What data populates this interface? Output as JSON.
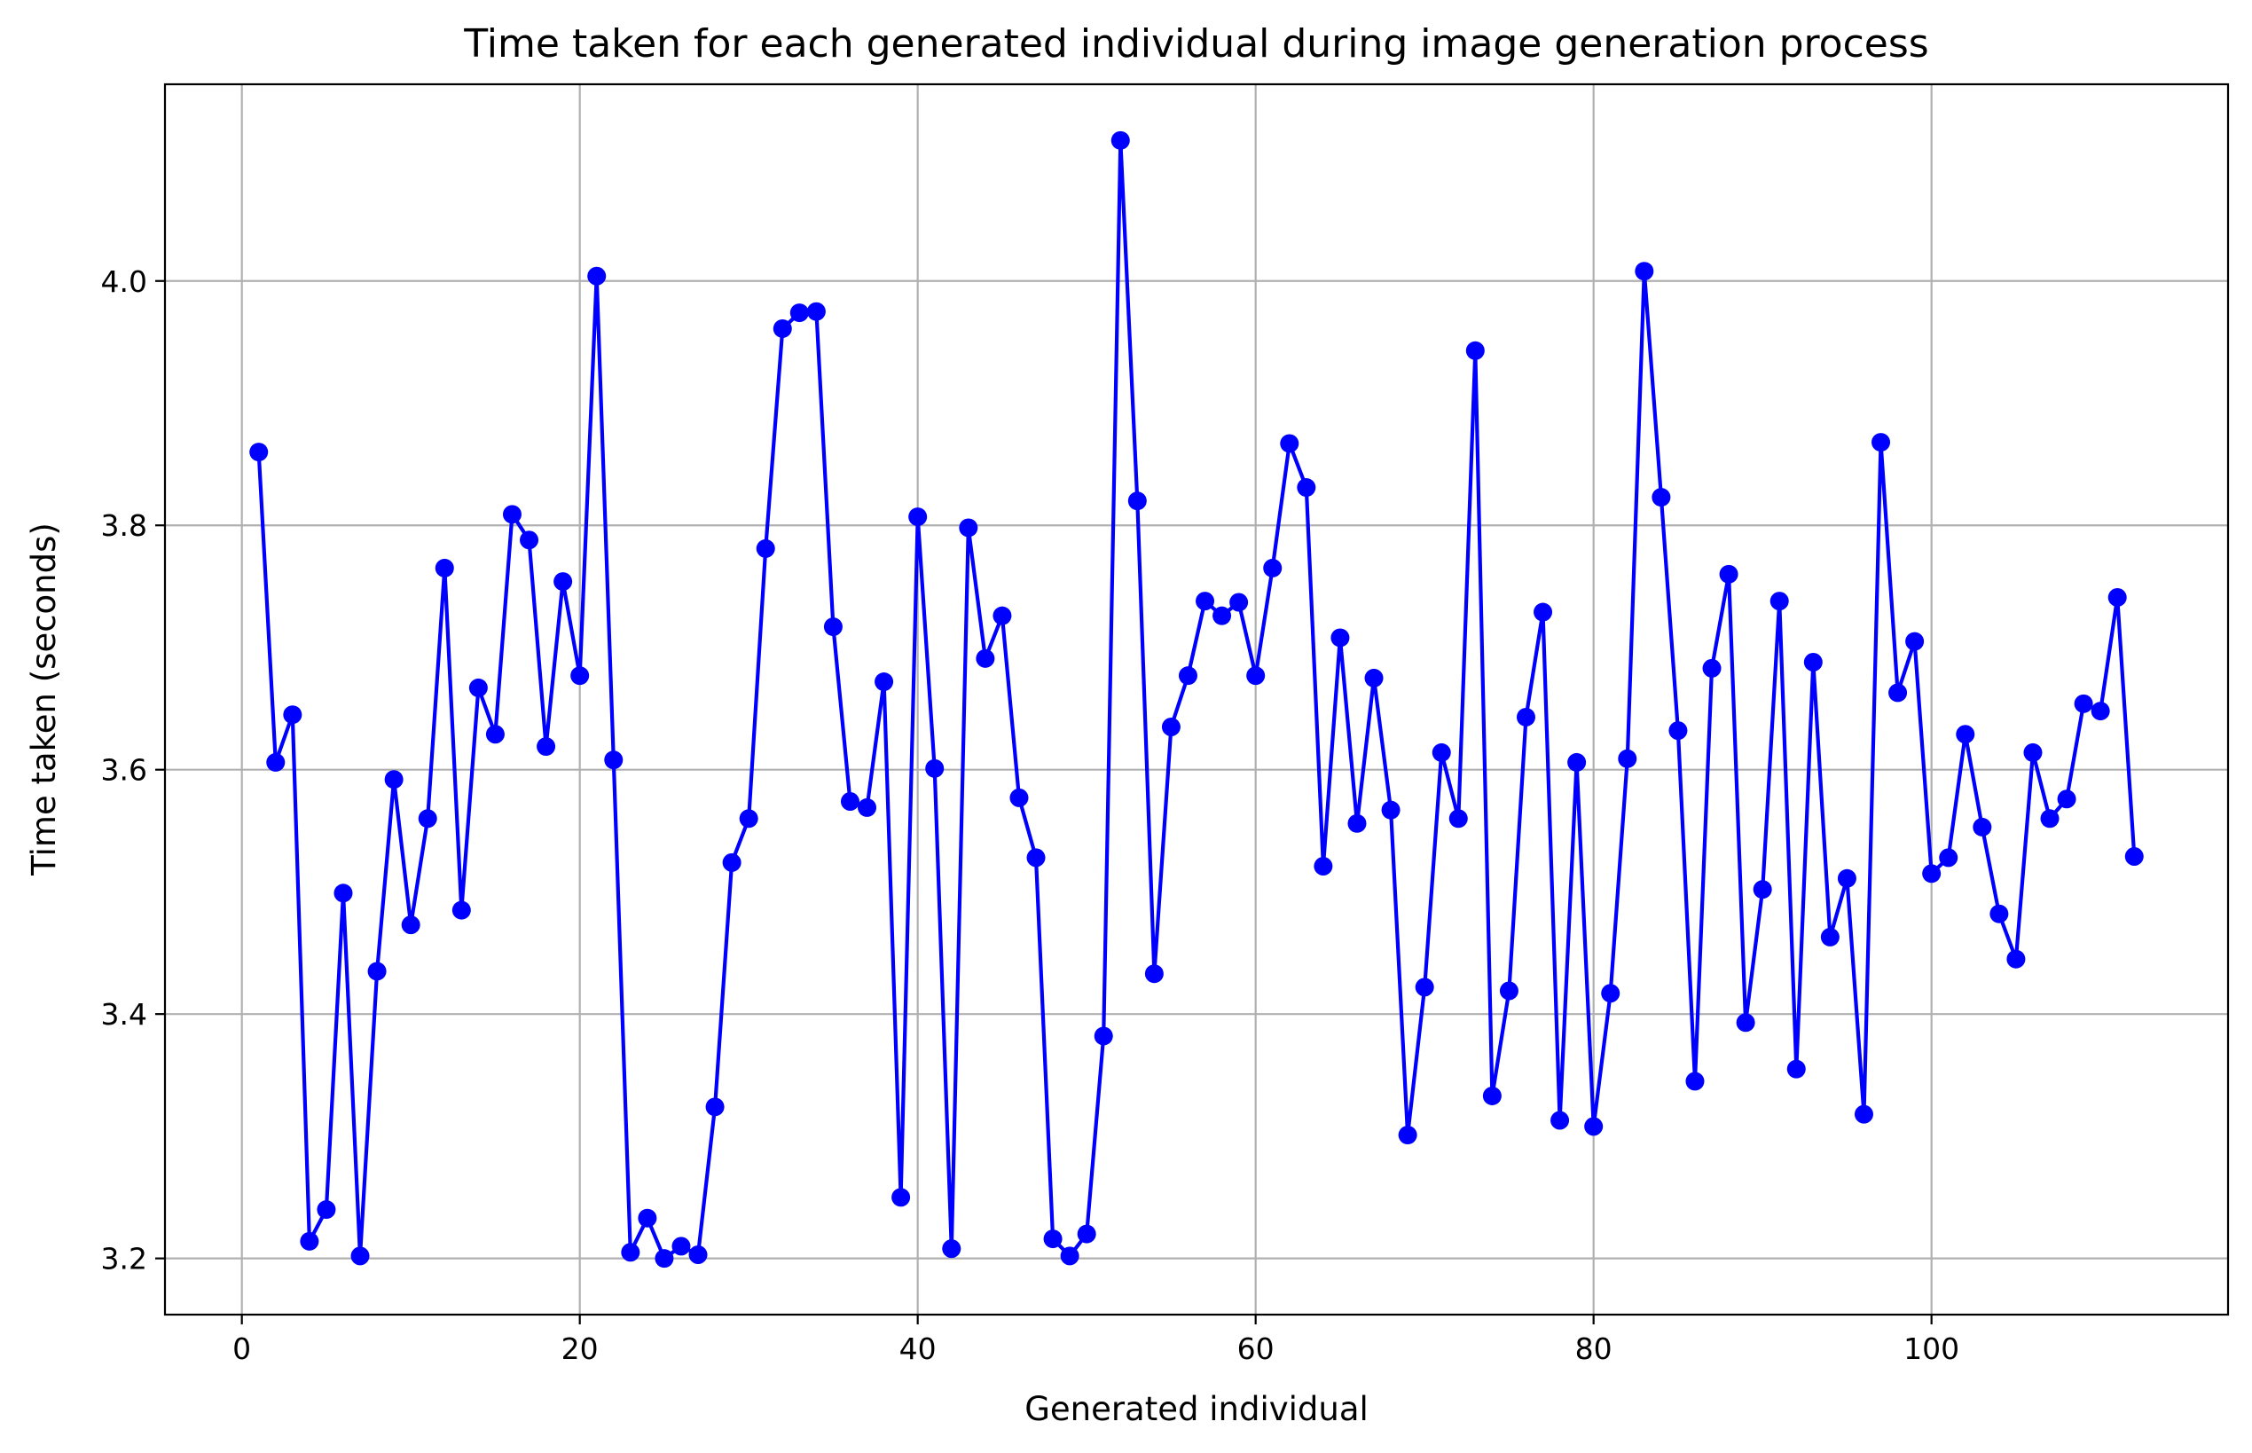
{
  "chart_data": {
    "type": "line",
    "title": "Time taken for each generated individual during image generation process",
    "xlabel": "Generated individual",
    "ylabel": "Time taken (seconds)",
    "xlim": [
      -4.55,
      117.55
    ],
    "ylim": [
      3.154,
      4.161
    ],
    "xticks": [
      0,
      20,
      40,
      60,
      80,
      100
    ],
    "yticks": [
      3.2,
      3.4,
      3.6,
      3.8,
      4.0
    ],
    "xtick_labels": [
      "0",
      "20",
      "40",
      "60",
      "80",
      "100"
    ],
    "ytick_labels": [
      "3.2",
      "3.4",
      "3.6",
      "3.8",
      "4.0"
    ],
    "grid": true,
    "color": "#0000ff",
    "marker": "circle",
    "series": [
      {
        "x": [
          1,
          2,
          3,
          4,
          5,
          6,
          7,
          8,
          9,
          10,
          11,
          12,
          13,
          14,
          15,
          16,
          17,
          18,
          19,
          20,
          21,
          22,
          23,
          24,
          25,
          26,
          27,
          28,
          29,
          30,
          31,
          32,
          33,
          34,
          35,
          36,
          37,
          38,
          39,
          40,
          41,
          42,
          43,
          44,
          45,
          46,
          47,
          48,
          49,
          50,
          51,
          52,
          53,
          54,
          55,
          56,
          57,
          58,
          59,
          60,
          61,
          62,
          63,
          64,
          65,
          66,
          67,
          68,
          69,
          70,
          71,
          72,
          73,
          74,
          75,
          76,
          77,
          78,
          79,
          80,
          81,
          82,
          83,
          84,
          85,
          86,
          87,
          88,
          89,
          90,
          91,
          92,
          93,
          94,
          95,
          96,
          97,
          98,
          99,
          100,
          101,
          102,
          103,
          104,
          105,
          106,
          107,
          108,
          109,
          110,
          111,
          112
        ],
        "values": [
          3.86,
          3.606,
          3.645,
          3.214,
          3.24,
          3.499,
          3.202,
          3.435,
          3.592,
          3.473,
          3.56,
          3.765,
          3.485,
          3.667,
          3.629,
          3.809,
          3.788,
          3.619,
          3.754,
          3.677,
          4.004,
          3.608,
          3.205,
          3.233,
          3.2,
          3.21,
          3.203,
          3.324,
          3.524,
          3.56,
          3.781,
          3.961,
          3.974,
          3.975,
          3.717,
          3.574,
          3.569,
          3.672,
          3.25,
          3.807,
          3.601,
          3.208,
          3.798,
          3.691,
          3.726,
          3.577,
          3.528,
          3.216,
          3.202,
          3.22,
          3.382,
          4.115,
          3.82,
          3.433,
          3.635,
          3.677,
          3.738,
          3.726,
          3.737,
          3.677,
          3.765,
          3.867,
          3.831,
          3.521,
          3.708,
          3.556,
          3.675,
          3.567,
          3.301,
          3.422,
          3.614,
          3.56,
          3.943,
          3.333,
          3.419,
          3.643,
          3.729,
          3.313,
          3.606,
          3.308,
          3.417,
          3.609,
          4.008,
          3.823,
          3.632,
          3.345,
          3.683,
          3.76,
          3.393,
          3.502,
          3.738,
          3.355,
          3.688,
          3.463,
          3.511,
          3.318,
          3.868,
          3.663,
          3.705,
          3.515,
          3.528,
          3.629,
          3.553,
          3.482,
          3.445,
          3.614,
          3.56,
          3.576,
          3.654,
          3.648,
          3.741,
          3.529
        ]
      }
    ]
  }
}
